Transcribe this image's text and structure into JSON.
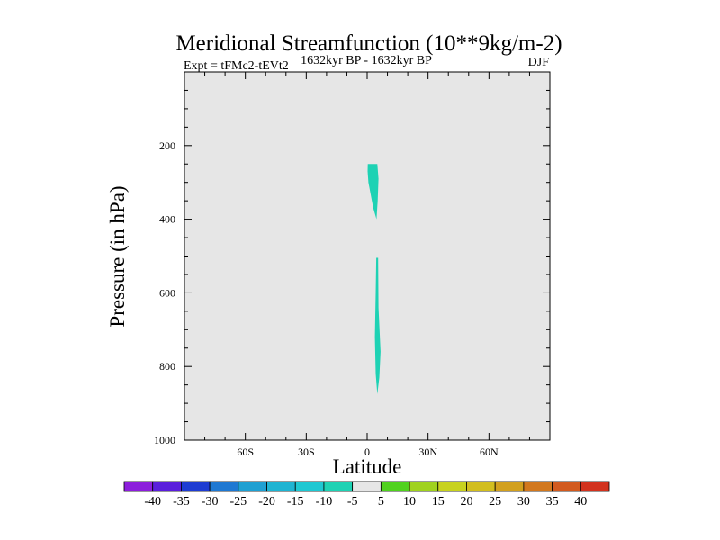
{
  "chart_data": {
    "type": "contour",
    "title": "Meridional Streamfunction (10**9kg/m-2)",
    "subtitle_left": "Expt = tFMc2-tEVt2",
    "subtitle_center": "1632kyr BP - 1632kyr BP",
    "subtitle_right": "DJF",
    "xlabel": "Latitude",
    "ylabel": "Pressure (in hPa)",
    "xlim": [
      -90,
      90
    ],
    "ylim": [
      0,
      1000
    ],
    "y_reversed": true,
    "x_ticks": [
      {
        "value": -60,
        "label": "60S"
      },
      {
        "value": -30,
        "label": "30S"
      },
      {
        "value": 0,
        "label": "0"
      },
      {
        "value": 30,
        "label": "30N"
      },
      {
        "value": 60,
        "label": "60N"
      }
    ],
    "y_ticks": [
      {
        "value": 200,
        "label": "200"
      },
      {
        "value": 400,
        "label": "400"
      },
      {
        "value": 600,
        "label": "600"
      },
      {
        "value": 800,
        "label": "800"
      },
      {
        "value": 1000,
        "label": "1000"
      }
    ],
    "background_level": "-5 to 5",
    "background_color": "#e6e6e6",
    "regions": [
      {
        "name": "upper-negative-cell",
        "level": "-10 to -5",
        "color": "#1ed2b4",
        "points": [
          [
            0.3,
            250
          ],
          [
            5.0,
            250
          ],
          [
            5.6,
            290
          ],
          [
            5.2,
            350
          ],
          [
            4.6,
            400
          ],
          [
            3.0,
            370
          ],
          [
            0.6,
            300
          ],
          [
            0.2,
            270
          ]
        ]
      },
      {
        "name": "lower-negative-cell",
        "level": "-10 to -5",
        "color": "#1ed2b4",
        "points": [
          [
            4.5,
            505
          ],
          [
            5.4,
            505
          ],
          [
            5.6,
            640
          ],
          [
            6.6,
            760
          ],
          [
            6.0,
            830
          ],
          [
            5.0,
            875
          ],
          [
            4.2,
            820
          ],
          [
            3.8,
            720
          ],
          [
            4.2,
            600
          ]
        ]
      }
    ],
    "colorbar": {
      "labels": [
        "-40",
        "-35",
        "-30",
        "-25",
        "-20",
        "-15",
        "-10",
        "-5",
        "5",
        "10",
        "15",
        "20",
        "25",
        "30",
        "35",
        "40"
      ],
      "colors": [
        "#8c1edc",
        "#5a1edc",
        "#1e3cd2",
        "#1e78d2",
        "#1ea0d2",
        "#1eb4d2",
        "#1ec8d2",
        "#1ed2b4",
        "#e6e6e6",
        "#50d21e",
        "#a0d21e",
        "#c8d21e",
        "#d2be1e",
        "#d2a01e",
        "#d2781e",
        "#d25a1e",
        "#d2321e"
      ]
    }
  }
}
